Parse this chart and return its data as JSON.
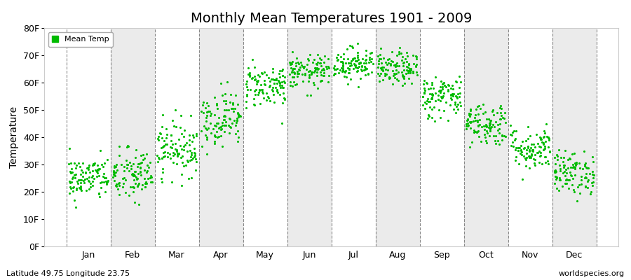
{
  "title": "Monthly Mean Temperatures 1901 - 2009",
  "ylabel": "Temperature",
  "xlabel_bottom_left": "Latitude 49.75 Longitude 23.75",
  "xlabel_bottom_right": "worldspecies.org",
  "ylim": [
    0,
    80
  ],
  "ytick_values": [
    0,
    10,
    20,
    30,
    40,
    50,
    60,
    70,
    80
  ],
  "ytick_labels": [
    "0F",
    "10F",
    "20F",
    "30F",
    "40F",
    "50F",
    "60F",
    "70F",
    "80F"
  ],
  "months": [
    "Jan",
    "Feb",
    "Mar",
    "Apr",
    "May",
    "Jun",
    "Jul",
    "Aug",
    "Sep",
    "Oct",
    "Nov",
    "Dec"
  ],
  "dot_color": "#00BB00",
  "background_color": "#FFFFFF",
  "band_color_even": "#EBEBEB",
  "band_color_odd": "#FFFFFF",
  "legend_label": "Mean Temp",
  "title_fontsize": 14,
  "axis_fontsize": 10,
  "tick_fontsize": 9,
  "monthly_mean_F": [
    25,
    26,
    36,
    47,
    59,
    64,
    67,
    65,
    55,
    45,
    36,
    27
  ],
  "monthly_std_F": [
    4,
    5,
    5,
    5,
    4,
    3,
    3,
    3,
    4,
    4,
    4,
    4
  ],
  "n_years": 109
}
